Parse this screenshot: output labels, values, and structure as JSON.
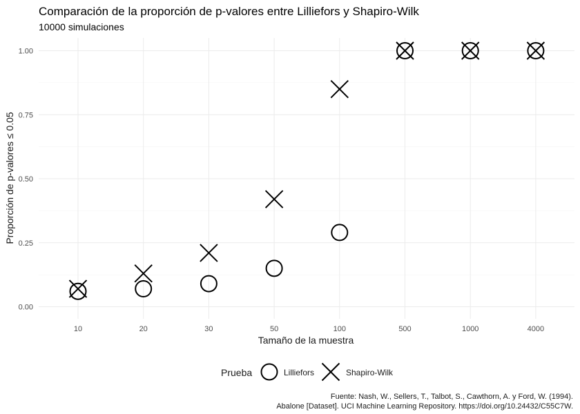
{
  "chart_data": {
    "type": "scatter",
    "title": "Comparación de la proporción de p-valores entre Lilliefors y Shapiro-Wilk",
    "subtitle": "10000 simulaciones",
    "xlabel": "Tamaño de la muestra",
    "ylabel": "Proporción de p-valores ≤ 0.05",
    "categories": [
      "10",
      "20",
      "30",
      "50",
      "100",
      "500",
      "1000",
      "4000"
    ],
    "ylim": [
      0,
      1
    ],
    "yticks": [
      "0.00",
      "0.25",
      "0.50",
      "0.75",
      "1.00"
    ],
    "grid": true,
    "legend": {
      "title": "Prueba",
      "position": "bottom"
    },
    "series": [
      {
        "name": "Lilliefors",
        "shape": "circle",
        "values": [
          0.06,
          0.07,
          0.09,
          0.15,
          0.29,
          1.0,
          1.0,
          1.0
        ]
      },
      {
        "name": "Shapiro-Wilk",
        "shape": "cross",
        "values": [
          0.07,
          0.13,
          0.21,
          0.42,
          0.85,
          1.0,
          1.0,
          1.0
        ]
      }
    ],
    "caption": [
      "Fuente: Nash, W., Sellers, T., Talbot, S., Cawthorn, A. y Ford, W. (1994).",
      "Abalone [Dataset]. UCI Machine Learning Repository. https://doi.org/10.24432/C55C7W."
    ]
  }
}
